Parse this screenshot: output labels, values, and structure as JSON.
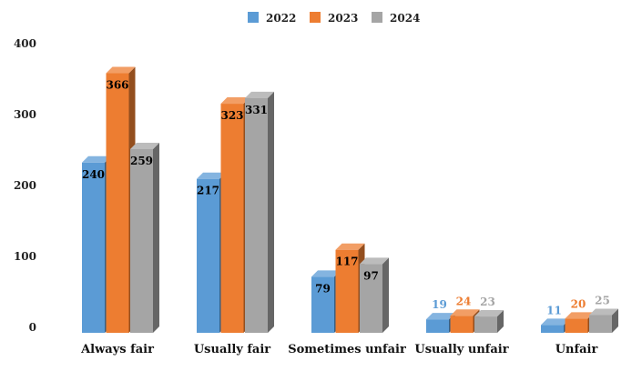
{
  "chart_data": {
    "type": "bar",
    "title": "",
    "xlabel": "",
    "ylabel": "",
    "categories": [
      "Always fair",
      "Usually fair",
      "Sometimes unfair",
      "Usually unfair",
      "Unfair"
    ],
    "series": [
      {
        "name": "2022",
        "values": [
          240,
          217,
          79,
          19,
          11
        ],
        "color": "#5b9bd5"
      },
      {
        "name": "2023",
        "values": [
          366,
          323,
          117,
          24,
          20
        ],
        "color": "#ed7d31"
      },
      {
        "name": "2024",
        "values": [
          259,
          331,
          97,
          23,
          25
        ],
        "color": "#a5a5a5"
      }
    ],
    "ylim": [
      0,
      400
    ],
    "yticks": [
      0,
      100,
      200,
      300,
      400
    ],
    "grid": false,
    "legend_position": "top-center",
    "style": "3d-clustered-column"
  }
}
